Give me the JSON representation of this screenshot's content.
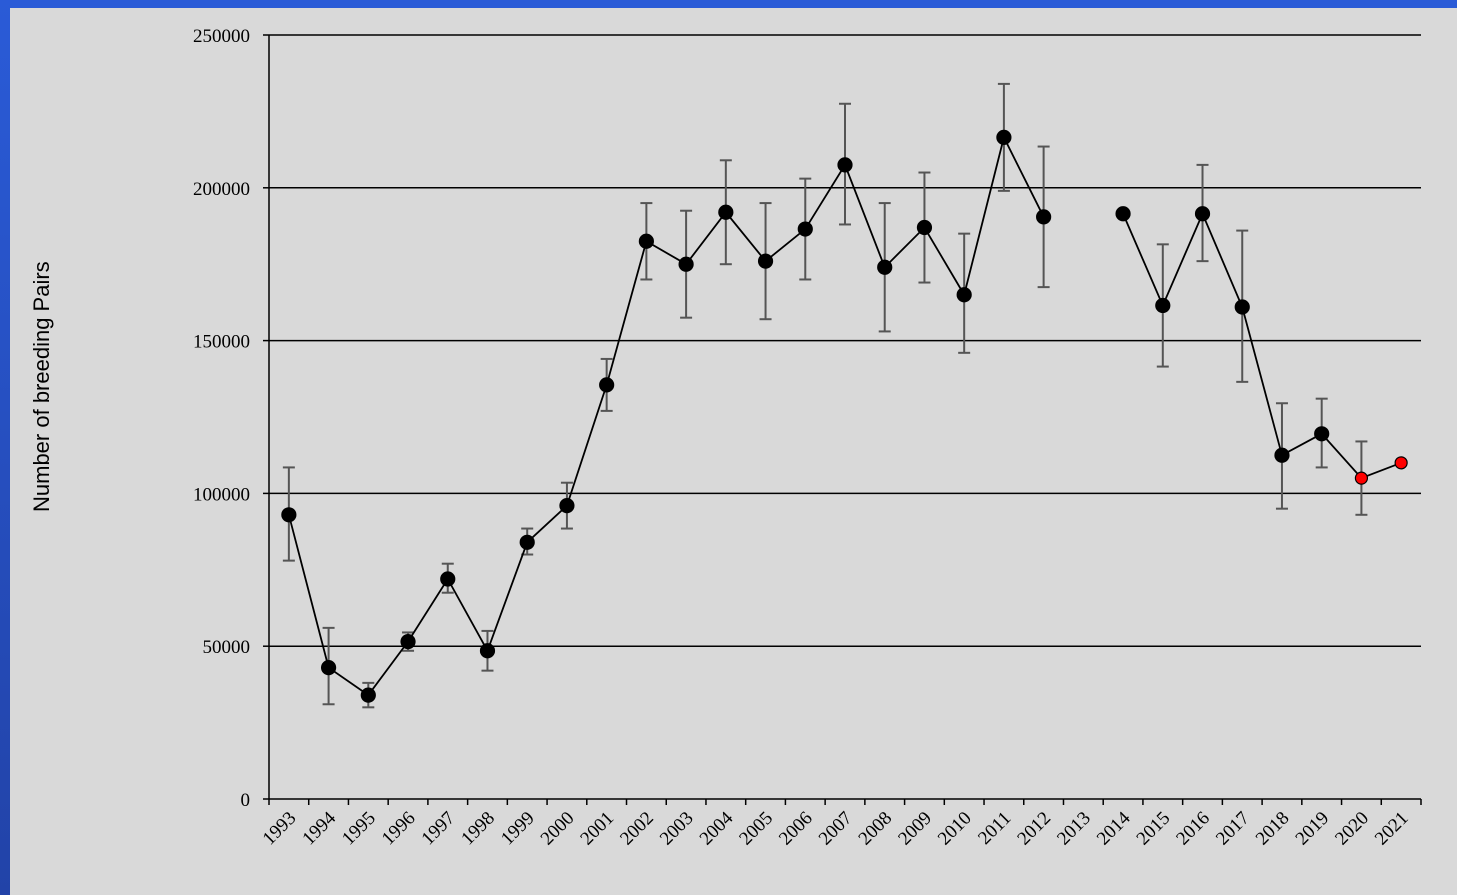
{
  "chart_data": {
    "type": "line",
    "title": "",
    "xlabel": "",
    "ylabel": "Number of breeding Pairs",
    "ylim": [
      0,
      250000
    ],
    "yticks": [
      0,
      50000,
      100000,
      150000,
      200000,
      250000
    ],
    "ytick_labels": [
      "0",
      "50000",
      "100000",
      "150000",
      "200000",
      "250000"
    ],
    "categories": [
      "1993",
      "1994",
      "1995",
      "1996",
      "1997",
      "1998",
      "1999",
      "2000",
      "2001",
      "2002",
      "2003",
      "2004",
      "2005",
      "2006",
      "2007",
      "2008",
      "2009",
      "2010",
      "2011",
      "2012",
      "2013",
      "2014",
      "2015",
      "2016",
      "2017",
      "2018",
      "2019",
      "2020",
      "2021"
    ],
    "grid": "horizontal",
    "legend": "none",
    "series": [
      {
        "values": [
          93000,
          43000,
          34000,
          51500,
          72000,
          48500,
          84000,
          96000,
          135500,
          182500,
          175000,
          192000,
          176000,
          186500,
          207500,
          174000,
          187000,
          165000,
          216500,
          190500,
          null,
          191500,
          161500,
          191500,
          161000,
          112500,
          119500,
          105000,
          110000
        ],
        "error_low": [
          78000,
          31000,
          30000,
          48500,
          67500,
          42000,
          80000,
          88500,
          127000,
          170000,
          157500,
          175000,
          157000,
          170000,
          188000,
          153000,
          169000,
          146000,
          199000,
          167500,
          null,
          null,
          141500,
          176000,
          136500,
          95000,
          108500,
          93000,
          null
        ],
        "error_high": [
          108500,
          56000,
          38000,
          54500,
          77000,
          55000,
          88500,
          103500,
          144000,
          195000,
          192500,
          209000,
          195000,
          203000,
          227500,
          195000,
          205000,
          185000,
          234000,
          213500,
          null,
          null,
          181500,
          207500,
          186000,
          129500,
          131000,
          117000,
          null
        ],
        "highlight_categories": [
          "2020",
          "2021"
        ]
      }
    ],
    "colors": {
      "line": "#000000",
      "marker": "#000000",
      "highlight_marker": "#ff0000",
      "error_bar": "#555555",
      "plot_background": "#d9d9d9",
      "frame": "#2a5bd7"
    }
  }
}
